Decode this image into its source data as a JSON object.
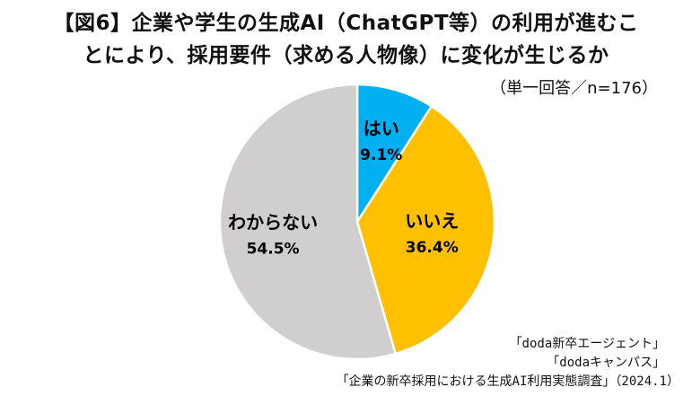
{
  "title": {
    "line1": "【図6】企業や学生の生成AI（ChatGPT等）の利用が進むこ",
    "line2": "とにより、採用要件（求める人物像）に変化が生じるか"
  },
  "note": "（単一回答／n=176）",
  "chart_data": {
    "type": "pie",
    "slices": [
      {
        "label": "はい",
        "value": 9.1,
        "value_label": "9.1%",
        "color": "#00B0F0"
      },
      {
        "label": "いいえ",
        "value": 36.4,
        "value_label": "36.4%",
        "color": "#FFC000"
      },
      {
        "label": "わからない",
        "value": 54.5,
        "value_label": "54.5%",
        "color": "#D0CECE"
      }
    ],
    "start": "12 o'clock",
    "direction": "clockwise"
  },
  "source": {
    "line1": "「doda新卒エージェント」",
    "line2": "「dodaキャンパス」",
    "line3": "「企業の新卒採用における生成AI利用実態調査」（2024.1）"
  }
}
